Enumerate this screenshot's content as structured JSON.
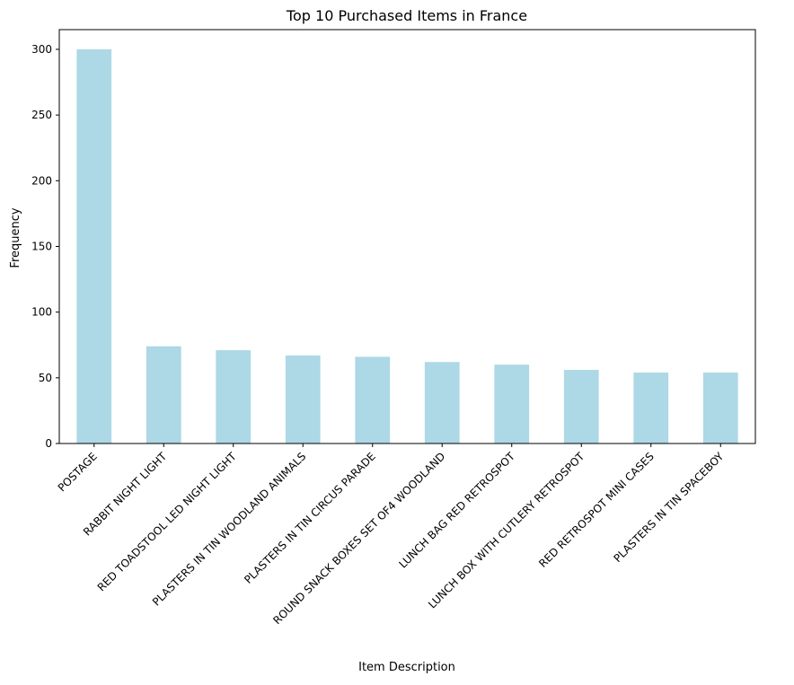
{
  "chart_data": {
    "type": "bar",
    "title": "Top 10 Purchased Items in France",
    "xlabel": "Item Description",
    "ylabel": "Frequency",
    "categories": [
      "POSTAGE",
      "RABBIT NIGHT LIGHT",
      "RED TOADSTOOL LED NIGHT LIGHT",
      "PLASTERS IN TIN WOODLAND ANIMALS",
      "PLASTERS IN TIN CIRCUS PARADE",
      "ROUND SNACK BOXES SET OF4 WOODLAND",
      "LUNCH BAG RED RETROSPOT",
      "LUNCH BOX WITH CUTLERY RETROSPOT",
      "RED RETROSPOT MINI CASES",
      "PLASTERS IN TIN SPACEBOY"
    ],
    "values": [
      300,
      74,
      71,
      67,
      66,
      62,
      60,
      56,
      54,
      54
    ],
    "ylim": [
      0,
      315
    ],
    "yticks": [
      0,
      50,
      100,
      150,
      200,
      250,
      300
    ],
    "grid": false,
    "bar_color": "#add8e6"
  }
}
